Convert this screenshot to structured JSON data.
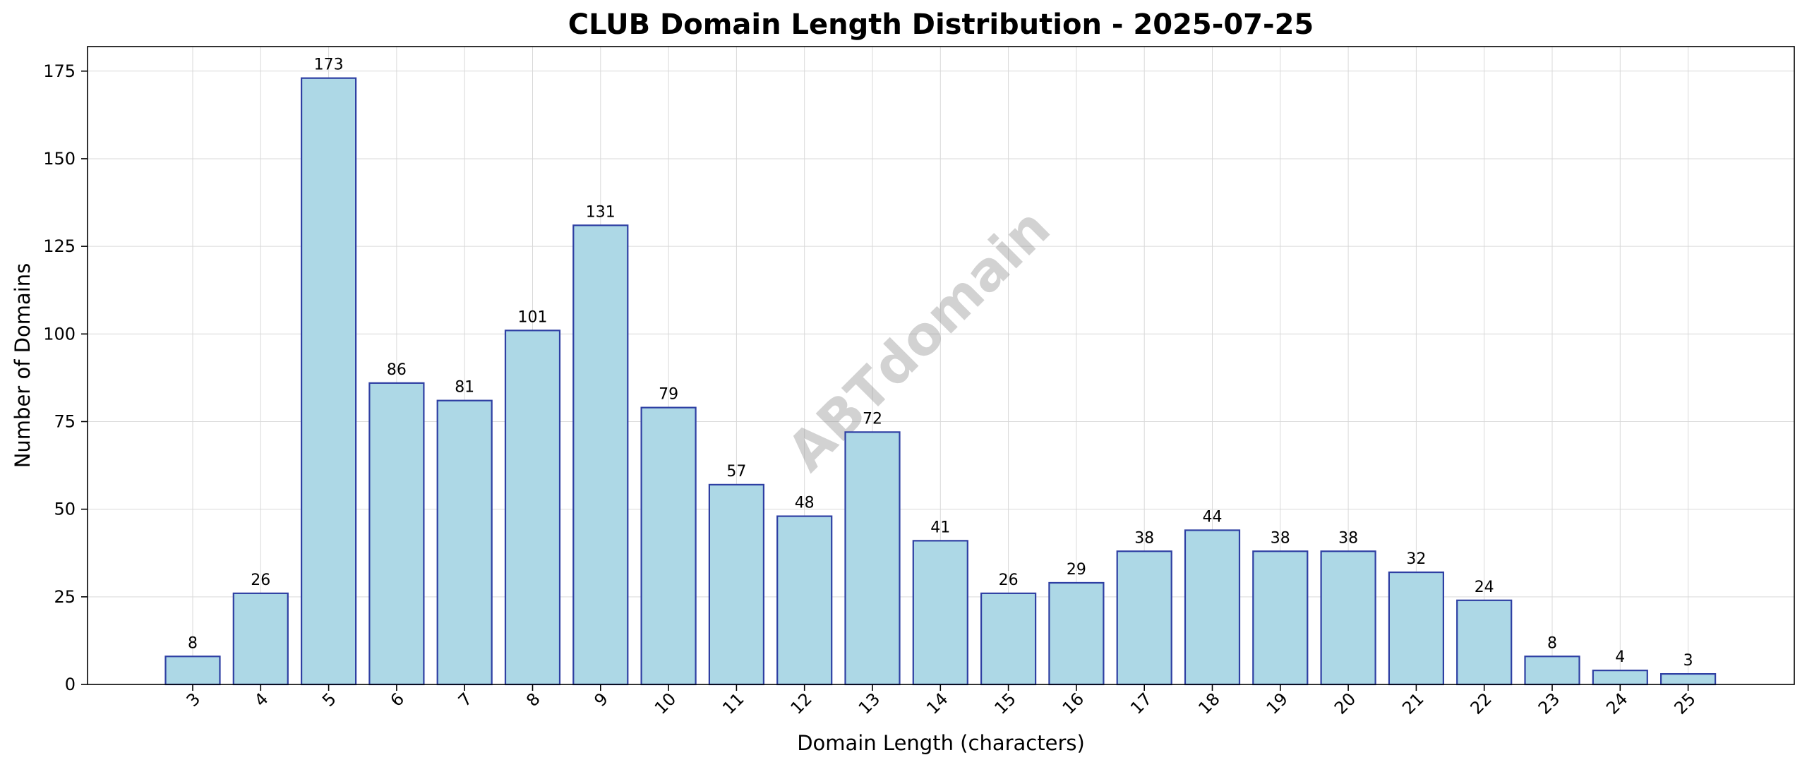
{
  "chart_data": {
    "type": "bar",
    "title": "CLUB Domain Length Distribution - 2025-07-25",
    "xlabel": "Domain Length (characters)",
    "ylabel": "Number of Domains",
    "categories": [
      "3",
      "4",
      "5",
      "6",
      "7",
      "8",
      "9",
      "10",
      "11",
      "12",
      "13",
      "14",
      "15",
      "16",
      "17",
      "18",
      "19",
      "20",
      "21",
      "22",
      "23",
      "24",
      "25"
    ],
    "values": [
      8,
      26,
      173,
      86,
      81,
      101,
      131,
      79,
      57,
      48,
      72,
      41,
      26,
      29,
      38,
      44,
      38,
      38,
      32,
      24,
      8,
      4,
      3
    ],
    "data_labels": [
      "8",
      "26",
      "173",
      "86",
      "81",
      "101",
      "131",
      "79",
      "57",
      "48",
      "72",
      "41",
      "26",
      "29",
      "38",
      "44",
      "38",
      "38",
      "32",
      "24",
      "8",
      "4",
      "3"
    ],
    "ylim": [
      0,
      182
    ],
    "yticks": [
      0,
      25,
      50,
      75,
      100,
      125,
      150,
      175
    ],
    "grid": true,
    "watermark": "ABTdomain",
    "colors": {
      "bar_fill": "#add8e6",
      "bar_edge": "#2e3fa3",
      "grid": "#d9d9d9"
    }
  }
}
